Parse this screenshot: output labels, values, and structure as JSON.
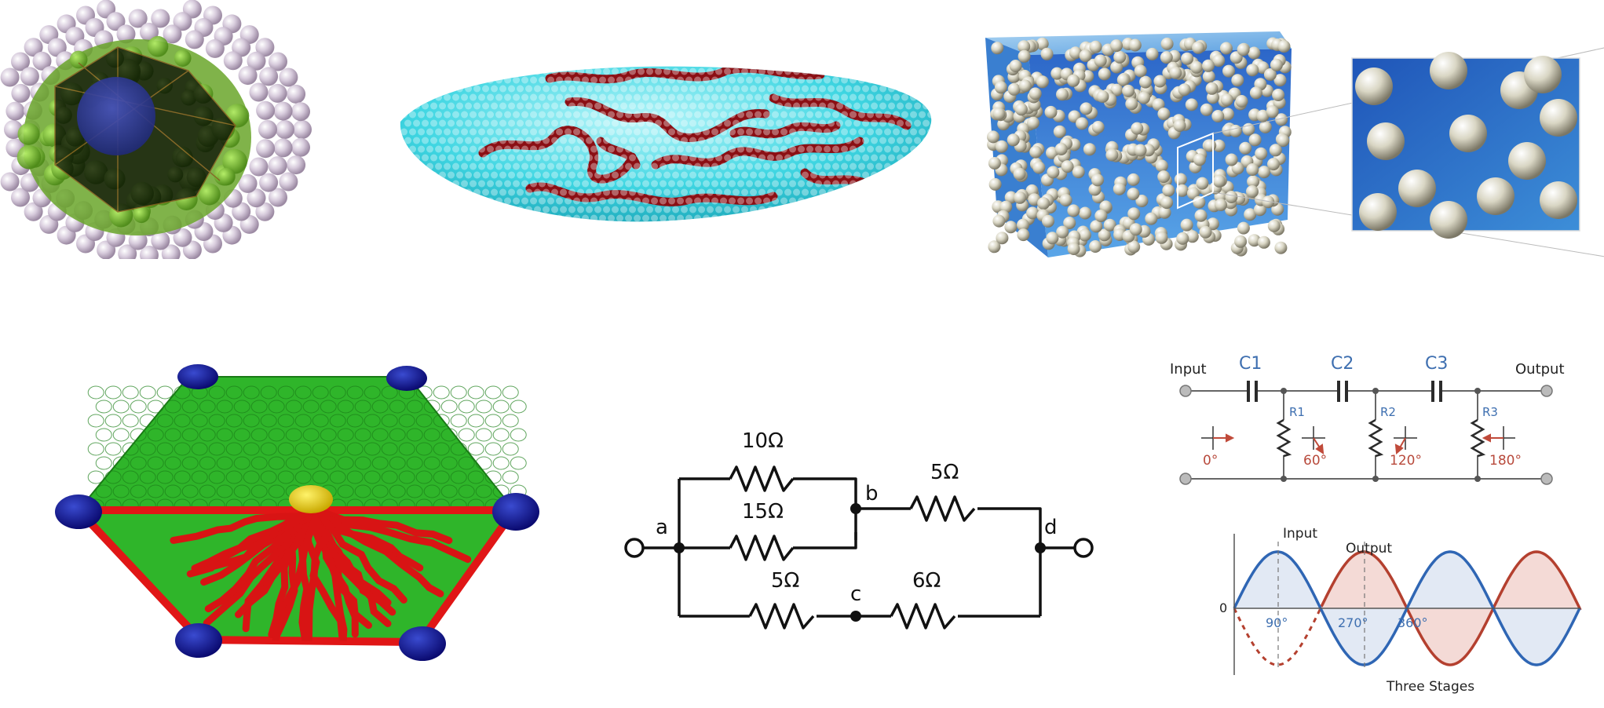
{
  "circuit_resistors": {
    "nodes": {
      "a": "a",
      "b": "b",
      "c": "c",
      "d": "d"
    },
    "resistors": {
      "r10": "10Ω",
      "r15": "15Ω",
      "r5top": "5Ω",
      "r5bot": "5Ω",
      "r6": "6Ω"
    }
  },
  "phase_shift": {
    "input_label": "Input",
    "output_label": "Output",
    "capacitors": [
      "C1",
      "C2",
      "C3"
    ],
    "resistors": [
      "R1",
      "R2",
      "R3"
    ],
    "phases": [
      "0°",
      "60°",
      "120°",
      "180°"
    ]
  },
  "wave_plot": {
    "input_label": "Input",
    "output_label": "Output",
    "zero_label": "0",
    "ticks": [
      "90°",
      "270°",
      "360°"
    ],
    "caption": "Three Stages"
  },
  "colors": {
    "cyan": "#37d6e0",
    "dark_red": "#8b0f14",
    "green": "#2fb52a",
    "red": "#e01616",
    "navy": "#1a1a9a",
    "blue_wave": "#2f66b4",
    "red_wave": "#b4402f"
  }
}
